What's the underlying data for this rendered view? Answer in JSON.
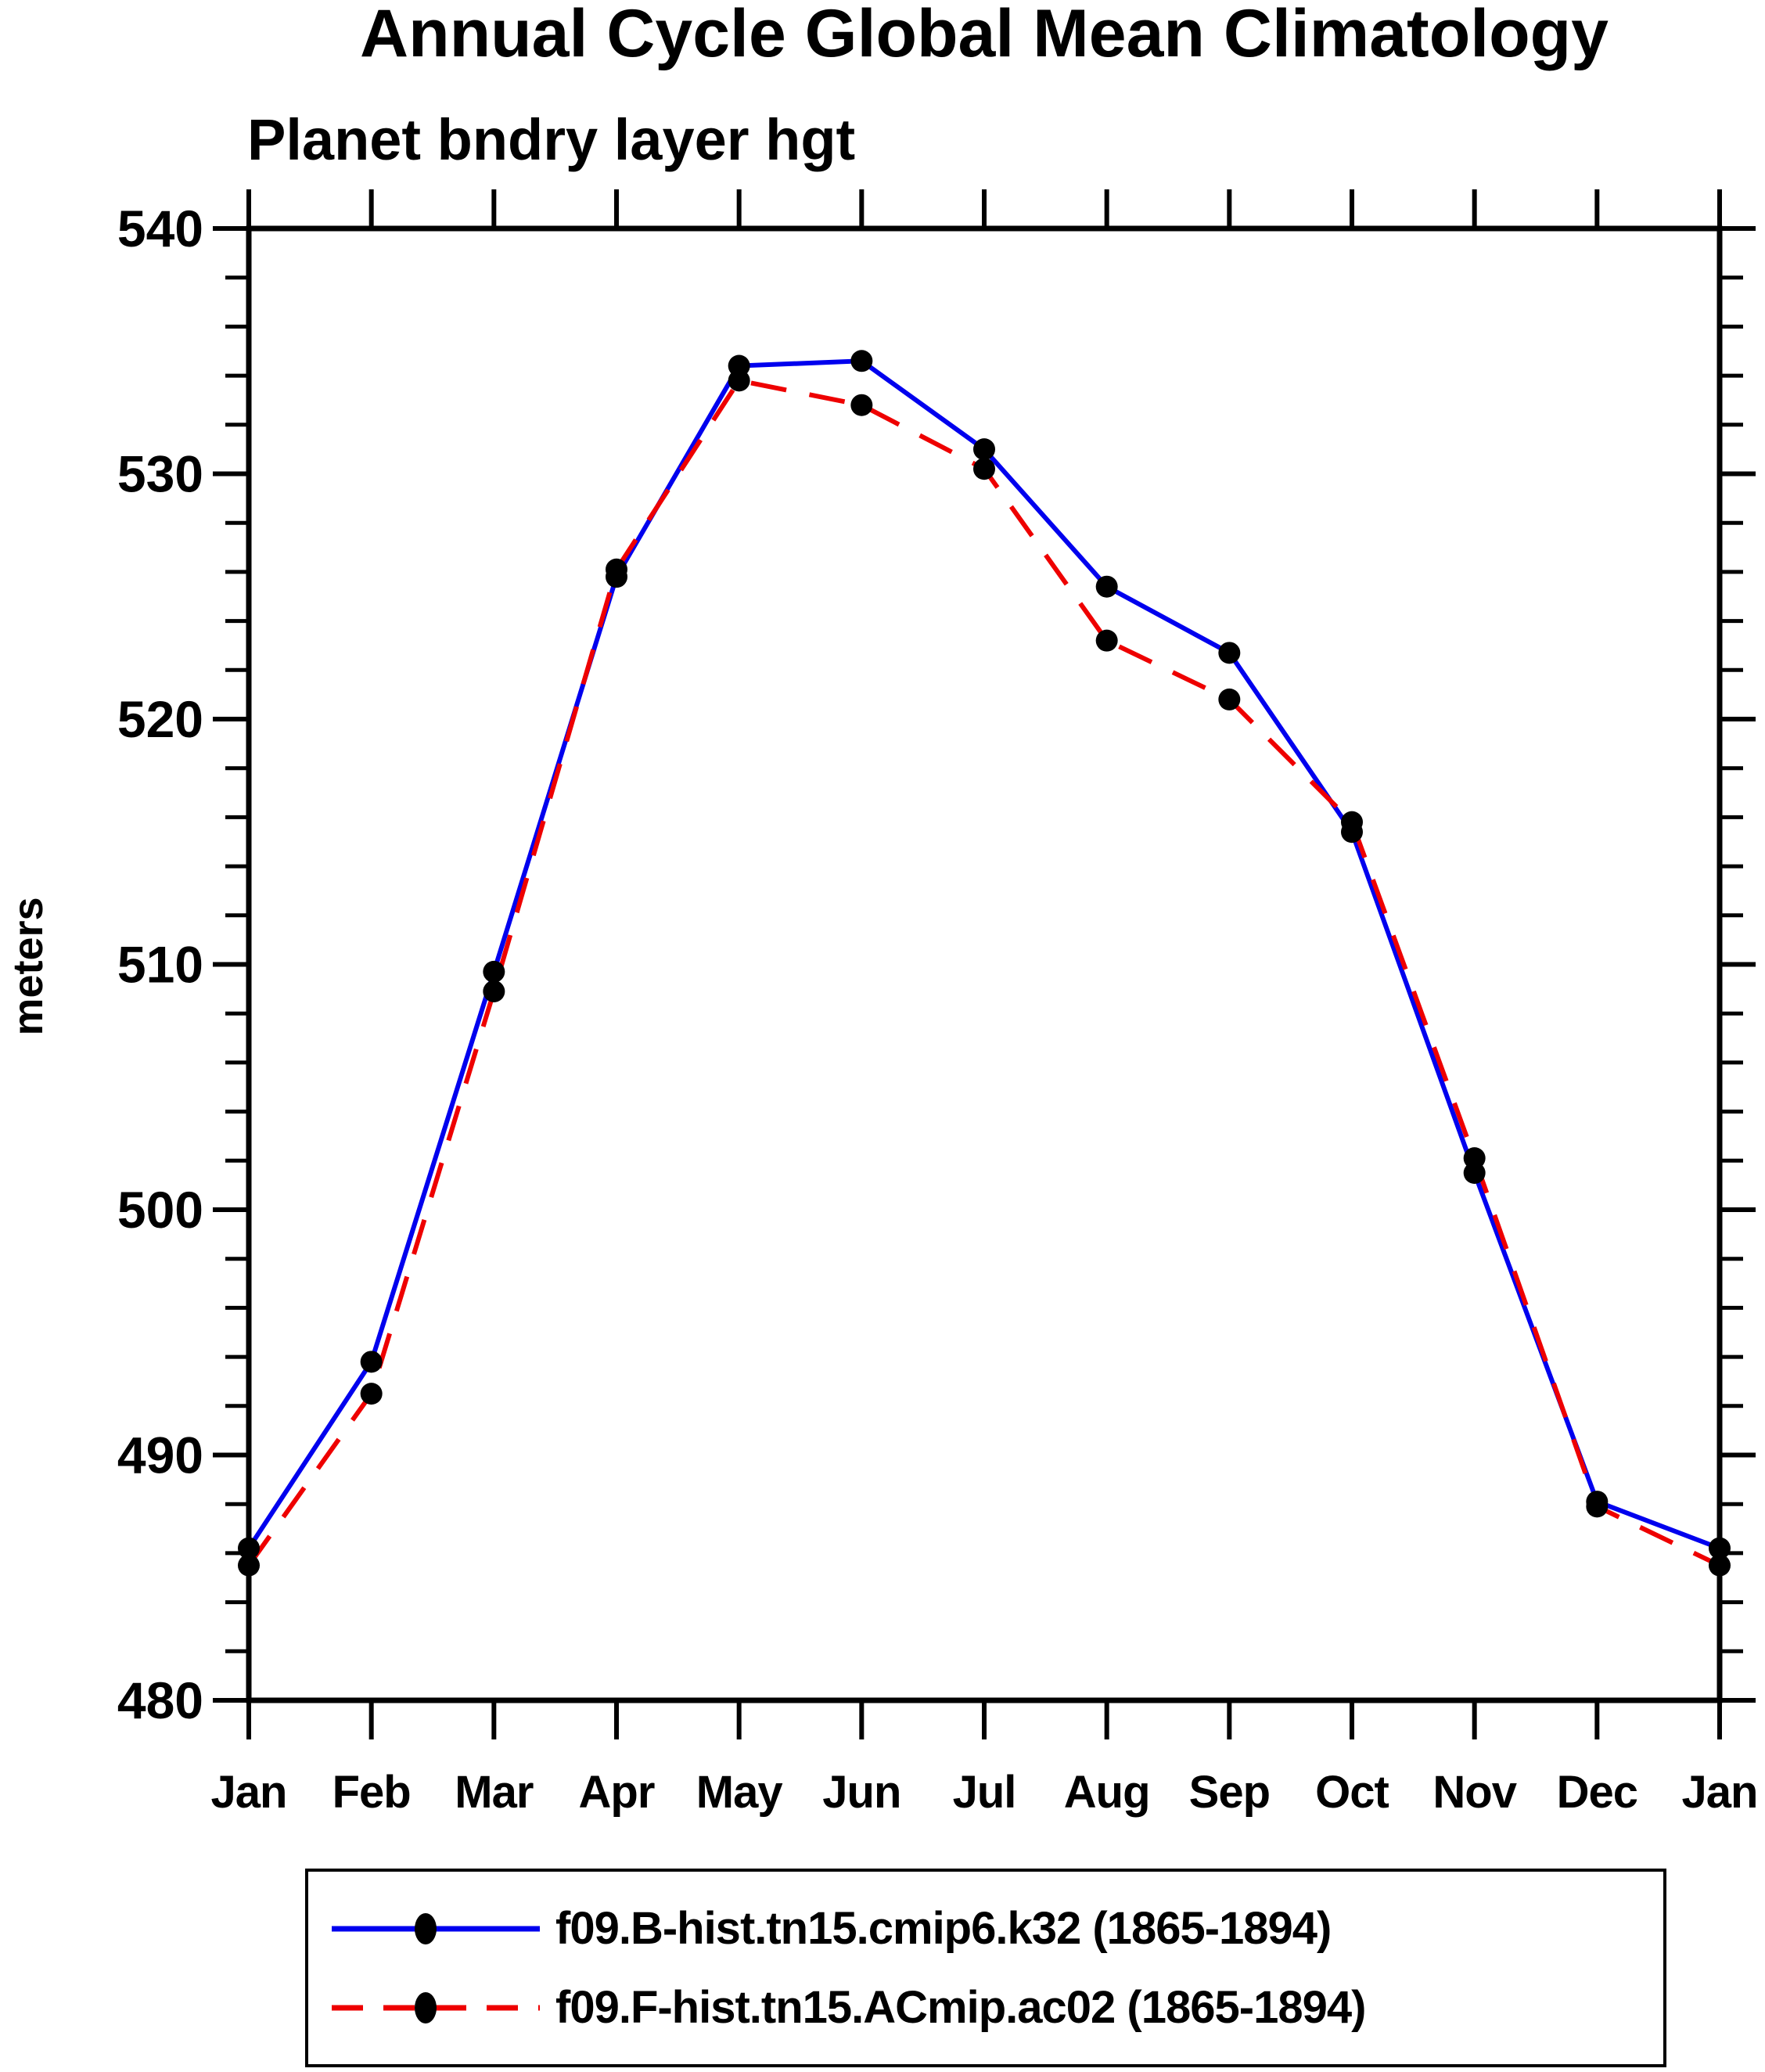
{
  "page": {
    "background": "#ffffff"
  },
  "chart_data": {
    "type": "line",
    "title": "Annual Cycle Global Mean Climatology",
    "subtitle": "Planet bndry layer hgt",
    "ylabel": "meters",
    "xlabel": "",
    "x_categories": [
      "Jan",
      "Feb",
      "Mar",
      "Apr",
      "May",
      "Jun",
      "Jul",
      "Aug",
      "Sep",
      "Oct",
      "Nov",
      "Dec",
      "Jan"
    ],
    "ylim": [
      480,
      540
    ],
    "y_major_step": 10,
    "y_minor_step": 2,
    "y_tick_labels": [
      "480",
      "490",
      "500",
      "510",
      "520",
      "530",
      "540"
    ],
    "grid": false,
    "legend_position": "bottom",
    "axis_color": "#000000",
    "marker_color": "#000000",
    "series": [
      {
        "name": "f09.B-hist.tn15.cmip6.k32 (1865-1894)",
        "color": "#0000ee",
        "style": "solid",
        "values": [
          486.2,
          493.8,
          509.7,
          525.8,
          534.4,
          534.6,
          531.0,
          525.4,
          522.7,
          515.4,
          501.5,
          488.1,
          486.2
        ]
      },
      {
        "name": "f09.F-hist.tn15.ACmip.ac02 (1865-1894)",
        "color": "#ee0000",
        "style": "dashed",
        "values": [
          485.5,
          492.5,
          508.9,
          526.1,
          533.8,
          532.8,
          530.2,
          523.2,
          520.8,
          515.8,
          502.1,
          487.9,
          485.5
        ]
      }
    ]
  }
}
